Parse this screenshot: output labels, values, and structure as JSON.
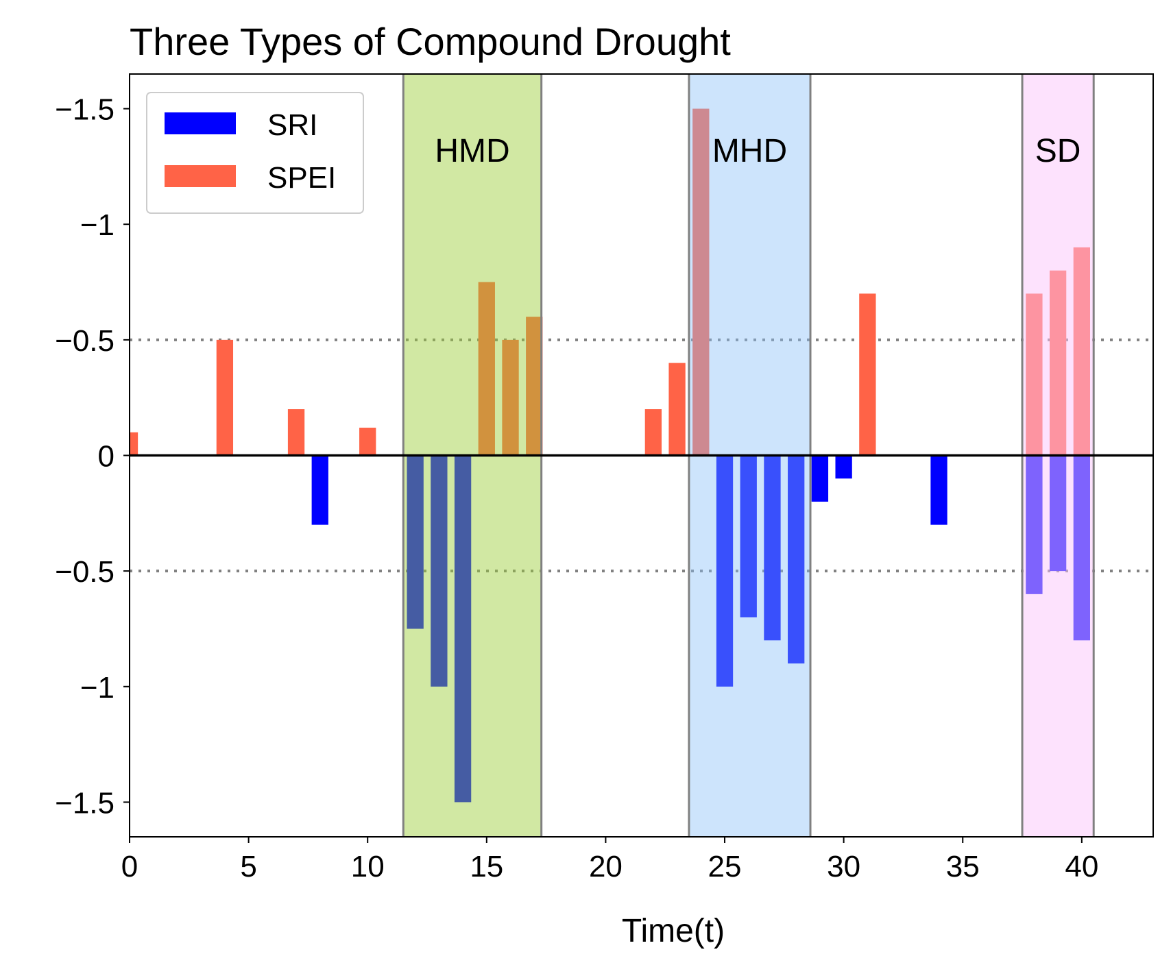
{
  "chart_data": {
    "type": "bar",
    "title": "Three Types of Compound Drought",
    "xlabel": "Time(t)",
    "ylabel": "",
    "xlim": [
      0,
      43
    ],
    "ylim": [
      -1.65,
      1.65
    ],
    "y_inverted_above_zero": true,
    "xticks": [
      0,
      5,
      10,
      15,
      20,
      25,
      30,
      35,
      40
    ],
    "xtick_labels": [
      "0",
      "5",
      "10",
      "15",
      "20",
      "25",
      "30",
      "35",
      "40"
    ],
    "yticks": [
      1.5,
      1,
      0.5,
      0,
      -0.5,
      -1,
      -1.5
    ],
    "ytick_labels": [
      "−1.5",
      "−1",
      "−0.5",
      "0",
      "−0.5",
      "−1",
      "−1.5"
    ],
    "threshold_lines": [
      0.5,
      -0.5
    ],
    "legend": {
      "position": "top-left",
      "entries": [
        {
          "label": "SRI",
          "color": "#0000ff"
        },
        {
          "label": "SPEI",
          "color": "#ff6347"
        }
      ]
    },
    "series": [
      {
        "name": "SPEI",
        "color": "#ff6347",
        "direction": "up",
        "points": [
          {
            "x": 0,
            "value": 0.1
          },
          {
            "x": 4,
            "value": 0.5
          },
          {
            "x": 7,
            "value": 0.2
          },
          {
            "x": 10,
            "value": 0.12
          },
          {
            "x": 15,
            "value": 0.75
          },
          {
            "x": 16,
            "value": 0.5
          },
          {
            "x": 17,
            "value": 0.6
          },
          {
            "x": 22,
            "value": 0.2
          },
          {
            "x": 23,
            "value": 0.4
          },
          {
            "x": 24,
            "value": 1.5
          },
          {
            "x": 31,
            "value": 0.7
          },
          {
            "x": 38,
            "value": 0.7
          },
          {
            "x": 39,
            "value": 0.8
          },
          {
            "x": 40,
            "value": 0.9
          }
        ]
      },
      {
        "name": "SRI",
        "color": "#0000ff",
        "direction": "down",
        "points": [
          {
            "x": 8,
            "value": 0.3
          },
          {
            "x": 12,
            "value": 0.75
          },
          {
            "x": 13,
            "value": 1.0
          },
          {
            "x": 14,
            "value": 1.5
          },
          {
            "x": 25,
            "value": 1.0
          },
          {
            "x": 26,
            "value": 0.7
          },
          {
            "x": 27,
            "value": 0.8
          },
          {
            "x": 28,
            "value": 0.9
          },
          {
            "x": 29,
            "value": 0.2
          },
          {
            "x": 30,
            "value": 0.1
          },
          {
            "x": 34,
            "value": 0.3
          },
          {
            "x": 38,
            "value": 0.6
          },
          {
            "x": 39,
            "value": 0.5
          },
          {
            "x": 40,
            "value": 0.8
          }
        ]
      }
    ],
    "regions": [
      {
        "label": "HMD",
        "x_start": 11.5,
        "x_end": 17.3,
        "color": "#9acd32",
        "opacity": 0.45
      },
      {
        "label": "MHD",
        "x_start": 23.5,
        "x_end": 28.6,
        "color": "#87bff8",
        "opacity": 0.42
      },
      {
        "label": "SD",
        "x_start": 37.5,
        "x_end": 40.5,
        "color": "#fcc6fb",
        "opacity": 0.5
      }
    ]
  }
}
